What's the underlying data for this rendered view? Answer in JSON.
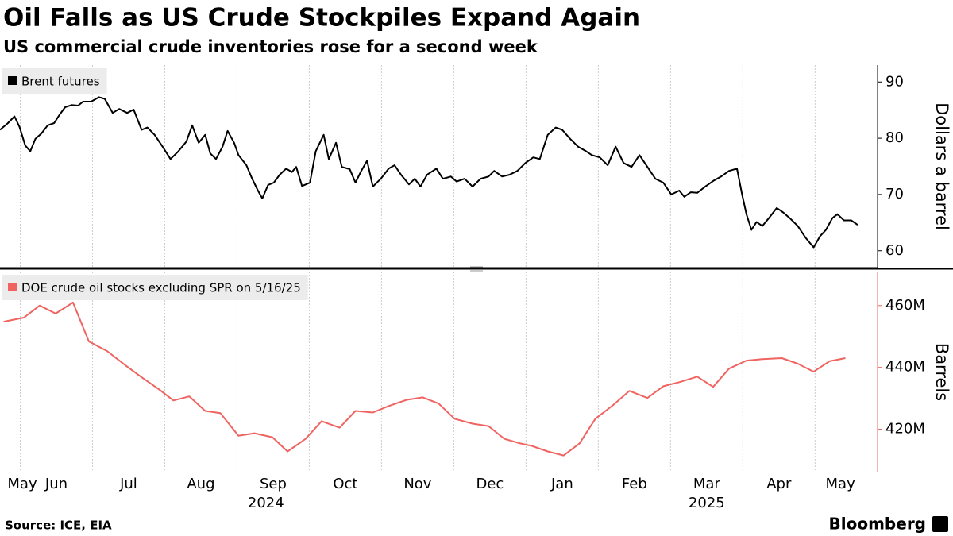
{
  "header": {
    "title": "Oil Falls as US Crude Stockpiles Expand Again",
    "subtitle": "US commercial crude inventories rose for a second week"
  },
  "chart_data": [
    {
      "type": "line",
      "ylabel": "Dollars a barrel",
      "xlim": [
        0.72,
        12.7
      ],
      "ylim": [
        57,
        93
      ],
      "yticks": [
        60,
        70,
        80,
        90
      ],
      "xgrid": [
        1,
        2,
        3,
        4,
        5,
        6,
        7,
        8,
        9,
        10,
        11,
        12
      ],
      "series": [
        {
          "name": "Brent futures",
          "color": "#000000",
          "x": [
            0.72,
            0.83,
            0.92,
            0.99,
            1.07,
            1.14,
            1.21,
            1.29,
            1.38,
            1.47,
            1.54,
            1.62,
            1.71,
            1.8,
            1.87,
            1.98,
            2.09,
            2.17,
            2.28,
            2.37,
            2.48,
            2.57,
            2.68,
            2.76,
            2.86,
            2.97,
            3.08,
            3.19,
            3.3,
            3.38,
            3.47,
            3.56,
            3.63,
            3.71,
            3.8,
            3.87,
            3.96,
            4.02,
            4.13,
            4.21,
            4.29,
            4.35,
            4.43,
            4.51,
            4.59,
            4.68,
            4.76,
            4.82,
            4.9,
            5.01,
            5.09,
            5.2,
            5.27,
            5.37,
            5.45,
            5.56,
            5.64,
            5.72,
            5.8,
            5.88,
            5.99,
            6.1,
            6.18,
            6.27,
            6.38,
            6.46,
            6.54,
            6.63,
            6.76,
            6.85,
            6.96,
            7.04,
            7.15,
            7.26,
            7.37,
            7.48,
            7.56,
            7.67,
            7.77,
            7.88,
            7.99,
            8.1,
            8.19,
            8.3,
            8.41,
            8.5,
            8.61,
            8.72,
            8.83,
            8.91,
            9.02,
            9.13,
            9.24,
            9.35,
            9.46,
            9.57,
            9.68,
            9.79,
            9.9,
            10.01,
            10.12,
            10.19,
            10.28,
            10.37,
            10.48,
            10.59,
            10.7,
            10.81,
            10.92,
            10.99,
            11.05,
            11.12,
            11.19,
            11.27,
            11.36,
            11.47,
            11.56,
            11.65,
            11.76,
            11.87,
            11.98,
            12.07,
            12.15,
            12.24,
            12.31,
            12.4,
            12.5,
            12.59
          ],
          "values": [
            81.5,
            82.7,
            83.9,
            82,
            78.7,
            77.7,
            79.9,
            80.8,
            82.3,
            82.7,
            84.1,
            85.5,
            85.9,
            85.8,
            86.5,
            86.5,
            87.3,
            87,
            84.5,
            85.2,
            84.5,
            85.1,
            81.5,
            81.9,
            80.6,
            78.5,
            76.3,
            77.7,
            79.4,
            82.3,
            79.2,
            80.6,
            77.3,
            76.3,
            78.5,
            81.3,
            79.2,
            77,
            75.2,
            72.8,
            70.7,
            69.3,
            71.7,
            72.1,
            73.5,
            74.6,
            74,
            74.9,
            71.5,
            72.1,
            77.7,
            80.6,
            76.3,
            79.2,
            74.9,
            74.5,
            72.1,
            74.2,
            76,
            71.4,
            72.8,
            74.6,
            75.2,
            73.5,
            71.8,
            72.8,
            71.4,
            73.5,
            74.6,
            72.8,
            73.2,
            72.3,
            72.8,
            71.4,
            72.8,
            73.2,
            74.2,
            73.2,
            73.5,
            74.2,
            75.6,
            76.6,
            76.3,
            80.6,
            81.9,
            81.5,
            79.9,
            78.5,
            77.7,
            77,
            76.6,
            75.2,
            78.5,
            75.6,
            74.9,
            77,
            74.9,
            72.8,
            72.1,
            70,
            70.7,
            69.6,
            70.4,
            70.3,
            71.4,
            72.4,
            73.2,
            74.2,
            74.6,
            70,
            66.5,
            63.7,
            65.1,
            64.4,
            65.8,
            67.6,
            66.8,
            65.8,
            64.4,
            62.3,
            60.6,
            62.6,
            63.7,
            65.8,
            66.5,
            65.4,
            65.4,
            64.6
          ]
        }
      ]
    },
    {
      "type": "line",
      "ylabel": "Barrels",
      "xlim": [
        0.72,
        12.7
      ],
      "ylim": [
        406,
        471
      ],
      "yticks": [
        {
          "value": 420,
          "label": "420M"
        },
        {
          "value": 440,
          "label": "440M"
        },
        {
          "value": 460,
          "label": "460M"
        }
      ],
      "xgrid": [
        1,
        2,
        3,
        4,
        5,
        6,
        7,
        8,
        9,
        10,
        11,
        12
      ],
      "xticks": [
        {
          "value": 0.86,
          "label": "May"
        },
        {
          "value": 1.5,
          "label": "Jun"
        },
        {
          "value": 2.5,
          "label": "Jul"
        },
        {
          "value": 3.5,
          "label": "Aug"
        },
        {
          "value": 4.5,
          "label": "Sep"
        },
        {
          "value": 5.5,
          "label": "Oct"
        },
        {
          "value": 6.5,
          "label": "Nov"
        },
        {
          "value": 7.5,
          "label": "Dec"
        },
        {
          "value": 8.5,
          "label": "Jan"
        },
        {
          "value": 9.5,
          "label": "Feb"
        },
        {
          "value": 10.5,
          "label": "Mar"
        },
        {
          "value": 11.5,
          "label": "Apr"
        },
        {
          "value": 12.35,
          "label": "May"
        }
      ],
      "year_labels": [
        {
          "value": 4.4,
          "label": "2024"
        },
        {
          "value": 10.5,
          "label": "2025"
        }
      ],
      "series": [
        {
          "name": "DOE crude oil stocks excluding SPR on 5/16/25",
          "color": "#ef6461",
          "x": [
            0.77,
            1.05,
            1.27,
            1.49,
            1.73,
            1.95,
            2.2,
            2.46,
            2.68,
            2.92,
            3.12,
            3.34,
            3.56,
            3.77,
            4.02,
            4.24,
            4.49,
            4.7,
            4.95,
            5.17,
            5.42,
            5.64,
            5.88,
            6.1,
            6.35,
            6.57,
            6.79,
            7.01,
            7.26,
            7.48,
            7.7,
            7.92,
            8.08,
            8.3,
            8.52,
            8.74,
            8.96,
            9.2,
            9.43,
            9.68,
            9.9,
            10.12,
            10.37,
            10.59,
            10.81,
            11.05,
            11.27,
            11.54,
            11.76,
            11.98,
            12.2,
            12.42
          ],
          "values": [
            454.8,
            456.1,
            460,
            457.4,
            461,
            448.4,
            445.3,
            440.6,
            436.8,
            432.9,
            429.3,
            430.6,
            425.9,
            425.2,
            417.9,
            418.7,
            417.4,
            412.8,
            416.9,
            422.6,
            420.5,
            425.9,
            425.4,
            427.5,
            429.5,
            430.3,
            428.3,
            423.4,
            421.8,
            421,
            416.9,
            415.4,
            414.6,
            412.8,
            411.5,
            415.4,
            423.4,
            427.7,
            432.4,
            430.1,
            433.9,
            435.2,
            437,
            433.7,
            439.6,
            442.2,
            442.7,
            443,
            441.2,
            438.6,
            442,
            443
          ]
        }
      ]
    }
  ],
  "footer": {
    "source": "Source: ICE, EIA",
    "brand": "Bloomberg"
  }
}
